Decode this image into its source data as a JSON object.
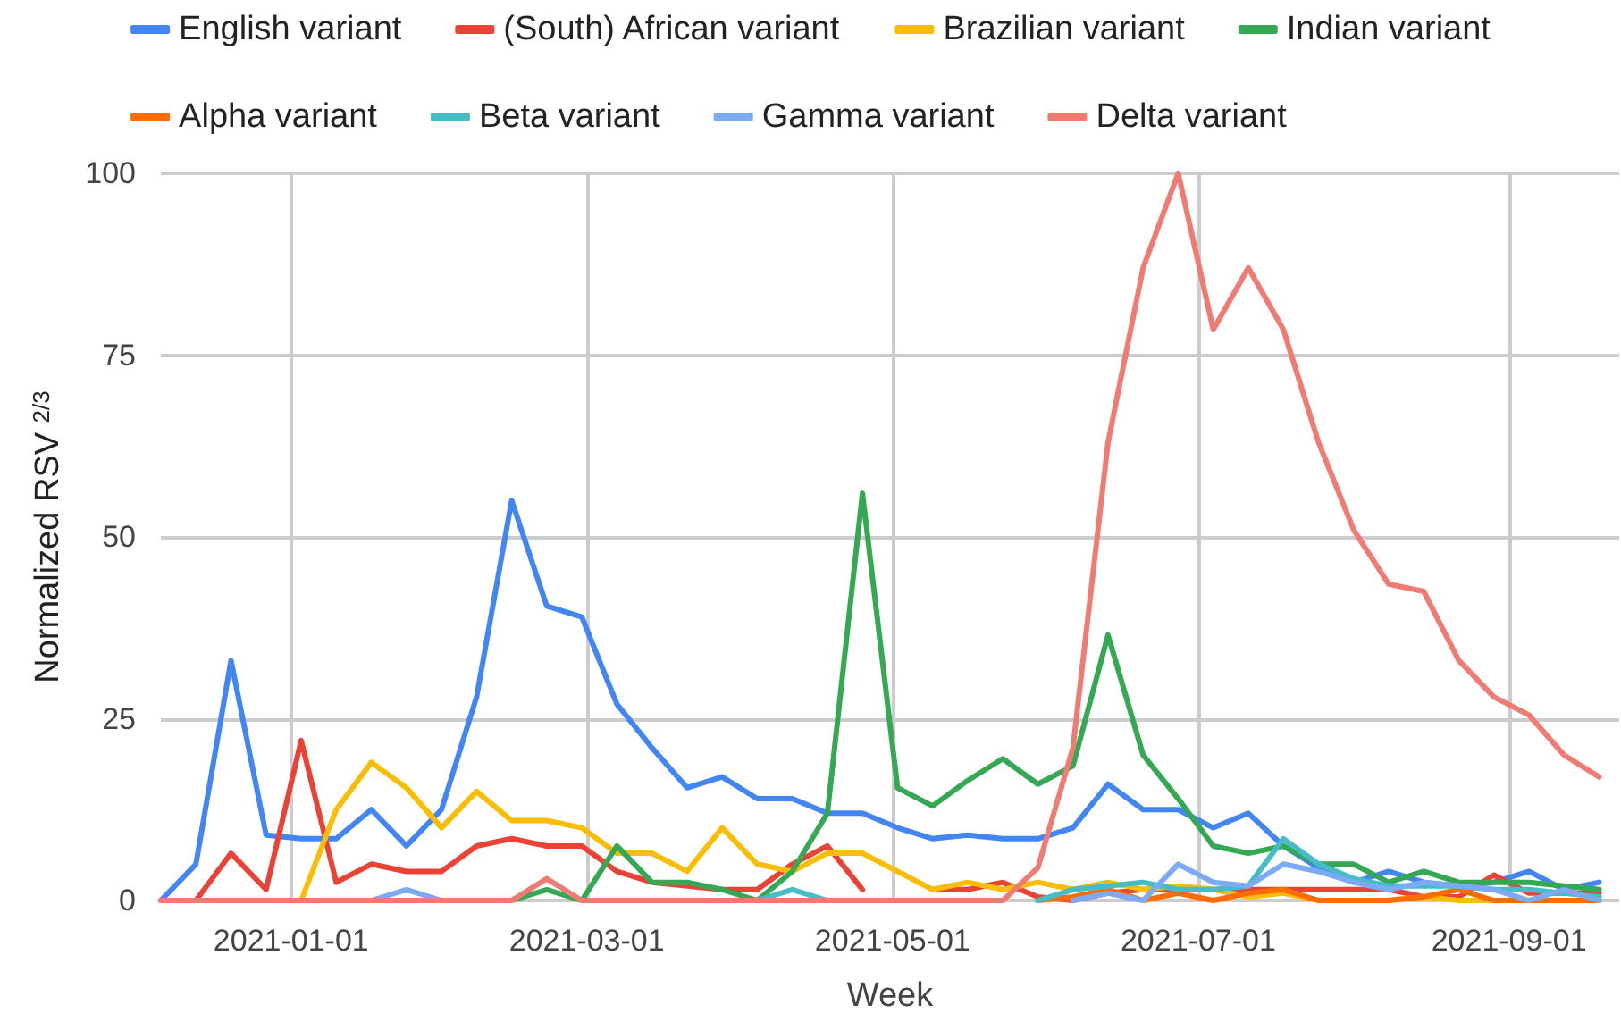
{
  "chart_data": {
    "type": "line",
    "xlabel": "Week",
    "ylabel": "Normalized RSV $^{2/3}$",
    "x": [
      "2020-12-06",
      "2020-12-13",
      "2020-12-20",
      "2020-12-27",
      "2021-01-03",
      "2021-01-10",
      "2021-01-17",
      "2021-01-24",
      "2021-01-31",
      "2021-02-07",
      "2021-02-14",
      "2021-02-21",
      "2021-02-28",
      "2021-03-07",
      "2021-03-14",
      "2021-03-21",
      "2021-03-28",
      "2021-04-04",
      "2021-04-11",
      "2021-04-18",
      "2021-04-25",
      "2021-05-02",
      "2021-05-09",
      "2021-05-16",
      "2021-05-23",
      "2021-05-30",
      "2021-06-06",
      "2021-06-13",
      "2021-06-20",
      "2021-06-27",
      "2021-07-04",
      "2021-07-11",
      "2021-07-18",
      "2021-07-25",
      "2021-08-01",
      "2021-08-08",
      "2021-08-15",
      "2021-08-22",
      "2021-08-29",
      "2021-09-05",
      "2021-09-12",
      "2021-09-19"
    ],
    "xlim": [
      "2020-12-06",
      "2021-09-23"
    ],
    "xticks": [
      "2021-01-01",
      "2021-03-01",
      "2021-05-01",
      "2021-07-01",
      "2021-09-01"
    ],
    "ylim": [
      0,
      100
    ],
    "yticks": [
      0,
      25,
      50,
      75,
      100
    ],
    "grid": true,
    "legend": "top",
    "line_style": "solid",
    "series": [
      {
        "name": "English variant",
        "color": "#4285f4",
        "values": [
          0,
          5,
          33,
          9,
          8.5,
          8.5,
          12.5,
          7.5,
          12.5,
          28,
          55,
          40.5,
          39,
          27,
          21,
          15.5,
          17,
          14,
          14,
          12,
          12,
          10,
          8.5,
          9,
          8.5,
          8.5,
          10,
          16,
          12.5,
          12.5,
          10,
          12,
          7.5,
          4.5,
          2.5,
          4,
          2.5,
          2,
          2.5,
          4,
          1.5,
          2.5
        ]
      },
      {
        "name": "(South) African variant",
        "color": "#ea4335",
        "values": [
          null,
          0,
          6.5,
          1.5,
          22,
          2.5,
          5,
          4,
          4,
          7.5,
          8.5,
          7.5,
          7.5,
          4,
          2.5,
          2,
          1.5,
          1.5,
          5,
          7.5,
          1.5,
          null,
          1.5,
          1.5,
          2.5,
          0.5,
          0,
          1,
          1.5,
          1.5,
          1.5,
          1.5,
          1.5,
          1.5,
          1.5,
          1.5,
          0.5,
          0.5,
          3.5,
          1,
          1,
          1
        ]
      },
      {
        "name": "Brazilian variant",
        "color": "#fbbc04",
        "values": [
          null,
          null,
          null,
          null,
          0,
          12.5,
          19,
          15.5,
          10,
          15,
          11,
          11,
          10,
          6.5,
          6.5,
          4,
          10,
          5,
          4,
          6.5,
          6.5,
          4,
          1.5,
          2.5,
          1.5,
          2.5,
          1.5,
          2.5,
          1.5,
          2,
          1.5,
          0.5,
          1,
          0,
          0,
          0,
          0.5,
          0,
          0,
          0,
          null,
          null
        ]
      },
      {
        "name": "Indian variant",
        "color": "#34a853",
        "values": [
          null,
          null,
          null,
          null,
          null,
          null,
          null,
          null,
          null,
          null,
          0,
          1.5,
          0,
          7.5,
          2.5,
          2.5,
          1.5,
          0,
          4,
          12,
          56,
          15.5,
          13,
          16.5,
          19.5,
          16,
          18.5,
          36.5,
          20,
          14,
          7.5,
          6.5,
          7.5,
          5,
          5,
          2.5,
          4,
          2.5,
          2.5,
          2.5,
          2,
          1.5
        ]
      },
      {
        "name": "Alpha variant",
        "color": "#ff6d01",
        "values": [
          null,
          null,
          null,
          null,
          null,
          null,
          null,
          null,
          null,
          null,
          null,
          null,
          null,
          null,
          null,
          null,
          null,
          null,
          null,
          null,
          null,
          null,
          null,
          null,
          null,
          0,
          0.5,
          1.5,
          0,
          1,
          0,
          1,
          1.5,
          0,
          0,
          0,
          0.5,
          1.5,
          0,
          0,
          0,
          0
        ]
      },
      {
        "name": "Beta variant",
        "color": "#46bdc6",
        "values": [
          null,
          null,
          null,
          null,
          null,
          null,
          null,
          null,
          null,
          null,
          null,
          null,
          null,
          null,
          null,
          null,
          null,
          0,
          1.5,
          0,
          null,
          null,
          null,
          null,
          null,
          0,
          1.5,
          2,
          2.5,
          1.5,
          1.5,
          2,
          8.5,
          5,
          3,
          2,
          2,
          2,
          1.5,
          1.5,
          1,
          0.5
        ]
      },
      {
        "name": "Gamma variant",
        "color": "#7baaf7",
        "values": [
          null,
          null,
          null,
          null,
          null,
          null,
          0,
          1.5,
          0,
          null,
          null,
          null,
          null,
          null,
          null,
          null,
          null,
          null,
          null,
          null,
          null,
          null,
          null,
          null,
          null,
          null,
          0,
          1,
          0,
          5,
          2.5,
          2,
          5,
          4,
          2.5,
          1.5,
          2.5,
          2,
          1.5,
          0,
          1.5,
          0
        ]
      },
      {
        "name": "Delta variant",
        "color": "#f07b72",
        "values": [
          0,
          0,
          0,
          0,
          0,
          0,
          0,
          0,
          0,
          0,
          0,
          3,
          0,
          0,
          0,
          0,
          0,
          0,
          0,
          0,
          0,
          0,
          0,
          0,
          0,
          4.5,
          21,
          63,
          87,
          100,
          78.5,
          87,
          78.5,
          63,
          51,
          43.5,
          42.5,
          33,
          28,
          25.5,
          20,
          17
        ]
      }
    ]
  }
}
